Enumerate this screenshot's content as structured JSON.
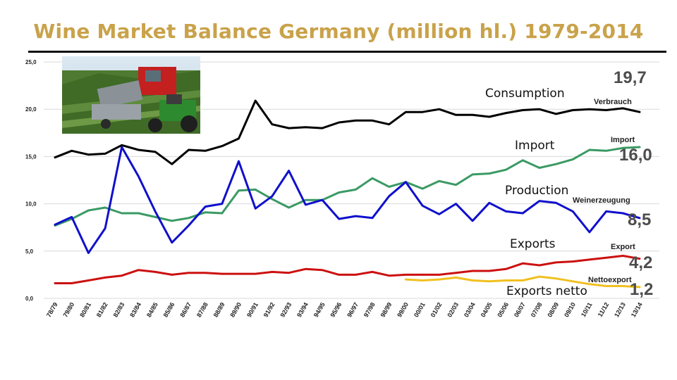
{
  "title": "Wine Market Balance Germany (million hl.) 1979-2014",
  "chart_data": {
    "type": "line",
    "title": "Wine Market Balance Germany (million hl.) 1979-2014",
    "ylim": [
      0,
      25
    ],
    "yticks": [
      "0,0",
      "5,0",
      "10,0",
      "15,0",
      "20,0",
      "25,0"
    ],
    "grid": true,
    "categories": [
      "78/79",
      "79/80",
      "80/81",
      "81/82",
      "82/83",
      "83/84",
      "84/85",
      "85/86",
      "86/87",
      "87/88",
      "88/89",
      "89/90",
      "90/91",
      "91/92",
      "92/93",
      "93/94",
      "94/95",
      "95/96",
      "96/97",
      "97/98",
      "98/99",
      "99/00",
      "00/01",
      "01/02",
      "02/03",
      "03/04",
      "04/05",
      "05/06",
      "06/07",
      "07/08",
      "08/09",
      "09/10",
      "10/11",
      "11/12",
      "12/13",
      "13/14"
    ],
    "series": [
      {
        "name": "Consumption",
        "name_de": "Verbrauch",
        "end_label": "19,7",
        "color": "#000000",
        "values": [
          14.9,
          15.6,
          15.2,
          15.3,
          16.2,
          15.7,
          15.5,
          14.2,
          15.7,
          15.6,
          16.1,
          16.9,
          20.9,
          18.4,
          18.0,
          18.1,
          18.0,
          18.6,
          18.8,
          18.8,
          18.4,
          19.7,
          19.7,
          20.0,
          19.4,
          19.4,
          19.2,
          19.6,
          19.9,
          20.0,
          19.5,
          19.9,
          20.0,
          19.9,
          20.1,
          19.7
        ]
      },
      {
        "name": "Import",
        "name_de": "Import",
        "end_label": "16,0",
        "color": "#3a9a64",
        "values": [
          7.7,
          8.4,
          9.3,
          9.6,
          9.0,
          9.0,
          8.6,
          8.2,
          8.5,
          9.1,
          9.0,
          11.4,
          11.5,
          10.5,
          9.6,
          10.4,
          10.4,
          11.2,
          11.5,
          12.7,
          11.8,
          12.3,
          11.6,
          12.4,
          12.0,
          13.1,
          13.2,
          13.6,
          14.6,
          13.8,
          14.2,
          14.7,
          15.7,
          15.6,
          15.9,
          16.0
        ]
      },
      {
        "name": "Production",
        "name_de": "Weinerzeugung",
        "end_label": "8,5",
        "color": "#1010cc",
        "values": [
          7.8,
          8.6,
          4.8,
          7.4,
          16.0,
          12.9,
          9.2,
          5.9,
          7.7,
          9.7,
          10.0,
          14.5,
          9.5,
          10.8,
          13.5,
          9.9,
          10.4,
          8.4,
          8.7,
          8.5,
          10.8,
          12.3,
          9.8,
          8.9,
          10.0,
          8.2,
          10.1,
          9.2,
          9.0,
          10.3,
          10.1,
          9.2,
          7.0,
          9.2,
          9.0,
          8.5
        ]
      },
      {
        "name": "Exports",
        "name_de": "Export",
        "end_label": "4,2",
        "color": "#cc1010",
        "values": [
          1.6,
          1.6,
          1.9,
          2.2,
          2.4,
          3.0,
          2.8,
          2.5,
          2.7,
          2.7,
          2.6,
          2.6,
          2.6,
          2.8,
          2.7,
          3.1,
          3.0,
          2.5,
          2.5,
          2.8,
          2.4,
          2.5,
          2.5,
          2.5,
          2.7,
          2.9,
          2.9,
          3.1,
          3.7,
          3.5,
          3.8,
          3.9,
          4.1,
          4.3,
          4.5,
          4.2
        ]
      },
      {
        "name": "Exports netto",
        "name_de": "Nettoexport",
        "end_label": "1,2",
        "color": "#f0c020",
        "values": [
          null,
          null,
          null,
          null,
          null,
          null,
          null,
          null,
          null,
          null,
          null,
          null,
          null,
          null,
          null,
          null,
          null,
          null,
          null,
          null,
          null,
          2.0,
          1.9,
          2.0,
          2.2,
          1.9,
          1.8,
          1.9,
          1.9,
          2.3,
          2.1,
          1.8,
          1.5,
          1.3,
          1.3,
          1.2
        ]
      }
    ]
  }
}
